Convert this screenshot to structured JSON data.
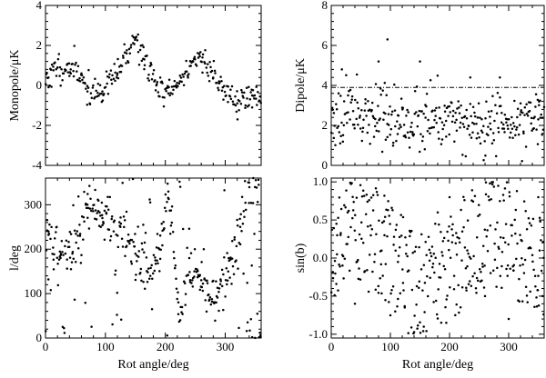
{
  "chart_data": [
    {
      "id": "monopole",
      "type": "scatter",
      "title": "",
      "xlabel": "",
      "ylabel": "Monopole/μK",
      "xlim": [
        0,
        360
      ],
      "ylim": [
        -4,
        4
      ],
      "xticks": [
        0,
        100,
        200,
        300
      ],
      "xtick_labels": [
        "",
        "",
        "",
        ""
      ],
      "yticks": [
        -4,
        -2,
        0,
        2,
        4
      ],
      "ytick_labels": [
        "-4",
        "-2",
        "0",
        "2",
        "4"
      ],
      "generator": {
        "kind": "monopole",
        "n": 300,
        "seed": 11
      },
      "points": [
        [
          5,
          0.4
        ],
        [
          20,
          0.9
        ],
        [
          42,
          0.8
        ],
        [
          60,
          0.6
        ],
        [
          70,
          -0.3
        ],
        [
          95,
          -0.3
        ],
        [
          120,
          0.6
        ],
        [
          150,
          2.4
        ],
        [
          165,
          1.3
        ],
        [
          185,
          0.0
        ],
        [
          205,
          -0.4
        ],
        [
          225,
          0.2
        ],
        [
          245,
          1.2
        ],
        [
          262,
          1.4
        ],
        [
          290,
          0.1
        ],
        [
          320,
          -0.9
        ],
        [
          345,
          -0.5
        ]
      ],
      "hline": null
    },
    {
      "id": "dipole",
      "type": "scatter",
      "title": "",
      "xlabel": "",
      "ylabel": "Dipole/μK",
      "xlim": [
        0,
        360
      ],
      "ylim": [
        0,
        8
      ],
      "xticks": [
        0,
        100,
        200,
        300
      ],
      "xtick_labels": [
        "",
        "",
        "",
        ""
      ],
      "yticks": [
        0,
        2,
        4,
        6,
        8
      ],
      "ytick_labels": [
        "0",
        "2",
        "4",
        "6",
        "8"
      ],
      "generator": {
        "kind": "dipole",
        "n": 330,
        "seed": 23
      },
      "points": [
        [
          18,
          4.8
        ],
        [
          80,
          5.2
        ],
        [
          95,
          6.3
        ],
        [
          150,
          5.2
        ],
        [
          235,
          4.4
        ],
        [
          285,
          4.4
        ],
        [
          320,
          3.1
        ],
        [
          350,
          2.3
        ]
      ],
      "hline": 3.9
    },
    {
      "id": "l",
      "type": "scatter",
      "title": "",
      "xlabel": "Rot angle/deg",
      "ylabel": "l/deg",
      "xlim": [
        0,
        360
      ],
      "ylim": [
        0,
        360
      ],
      "xticks": [
        0,
        100,
        200,
        300
      ],
      "xtick_labels": [
        "0",
        "100",
        "200",
        "300"
      ],
      "yticks": [
        0,
        100,
        200,
        300
      ],
      "ytick_labels": [
        "0",
        "100",
        "200",
        "300"
      ],
      "generator": {
        "kind": "lon",
        "n": 380,
        "seed": 37
      },
      "points": [
        [
          5,
          240
        ],
        [
          25,
          180
        ],
        [
          45,
          190
        ],
        [
          70,
          300
        ],
        [
          95,
          270
        ],
        [
          125,
          250
        ],
        [
          150,
          190
        ],
        [
          175,
          140
        ],
        [
          190,
          200
        ],
        [
          205,
          330
        ],
        [
          225,
          40
        ],
        [
          240,
          180
        ],
        [
          260,
          130
        ],
        [
          285,
          80
        ],
        [
          305,
          150
        ],
        [
          325,
          250
        ],
        [
          340,
          350
        ]
      ],
      "hline": null
    },
    {
      "id": "sinb",
      "type": "scatter",
      "title": "",
      "xlabel": "Rot angle/deg",
      "ylabel": "sin(b)",
      "xlim": [
        0,
        360
      ],
      "ylim": [
        -1.05,
        1.05
      ],
      "xticks": [
        0,
        100,
        200,
        300
      ],
      "xtick_labels": [
        "0",
        "100",
        "200",
        "300"
      ],
      "yticks": [
        -1.0,
        -0.5,
        0.0,
        0.5,
        1.0
      ],
      "ytick_labels": [
        "-1.0",
        "-0.5",
        "0.0",
        "0.5",
        "1.0"
      ],
      "generator": {
        "kind": "sinb",
        "n": 380,
        "seed": 53
      },
      "points": [
        [
          10,
          0.3
        ],
        [
          40,
          -0.6
        ],
        [
          90,
          0.3
        ],
        [
          180,
          0.6
        ],
        [
          200,
          0.8
        ],
        [
          230,
          0.1
        ],
        [
          260,
          -0.5
        ],
        [
          300,
          -0.8
        ],
        [
          350,
          0.8
        ]
      ],
      "hline": null
    }
  ]
}
